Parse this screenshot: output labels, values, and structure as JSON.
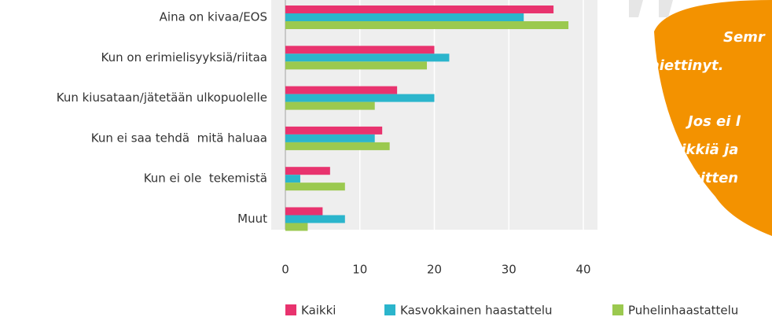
{
  "chart_data": {
    "type": "bar",
    "orientation": "horizontal",
    "categories": [
      "Aina on kivaa/EOS",
      "Kun on erimielisyyksiä/riitaa",
      "Kun kiusataan/jätetään ulkopuolelle",
      "Kun ei saa tehdä  mitä haluaa",
      "Kun ei ole  tekemistä",
      "Muut"
    ],
    "series": [
      {
        "name": "Kaikki",
        "color": "#e8336e",
        "values": [
          36,
          20,
          15,
          13,
          6,
          5
        ]
      },
      {
        "name": "Kasvokkainen haastattelu",
        "color": "#2bb5cc",
        "values": [
          32,
          22,
          20,
          12,
          2,
          8
        ]
      },
      {
        "name": "Puhelinhaastattelu",
        "color": "#9bc94f",
        "values": [
          38,
          19,
          12,
          14,
          8,
          3
        ]
      }
    ],
    "xlim": [
      0,
      40
    ],
    "xticks": [
      0,
      10,
      20,
      30,
      40
    ],
    "grid": true,
    "legend": "bottom"
  },
  "quote": {
    "lines": [
      "Semr",
      "miettinyt.",
      "Jos ei l",
      "leikkiä ja",
      "sitten"
    ]
  }
}
